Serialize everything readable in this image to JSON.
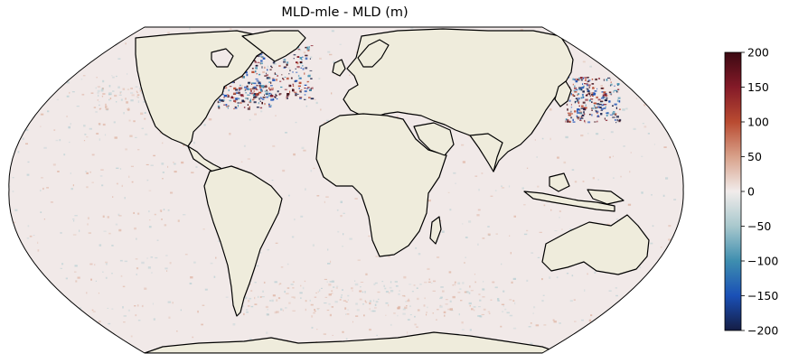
{
  "title": "MLD-mle - MLD (m)",
  "projection": "Robinson",
  "land_color": "#efecdc",
  "ocean_base_color": "#f1e9e8",
  "colorbar": {
    "colormap": "balance (diverging)",
    "colors": [
      "#151d44",
      "#1a50b6",
      "#3e8eaf",
      "#a8c8cd",
      "#f1eceb",
      "#d8a18a",
      "#b94b31",
      "#841a28",
      "#3c0912"
    ],
    "min": -200,
    "max": 200,
    "ticks": [
      "200",
      "150",
      "100",
      "50",
      "0",
      "−50",
      "−100",
      "−150",
      "−200"
    ]
  }
}
